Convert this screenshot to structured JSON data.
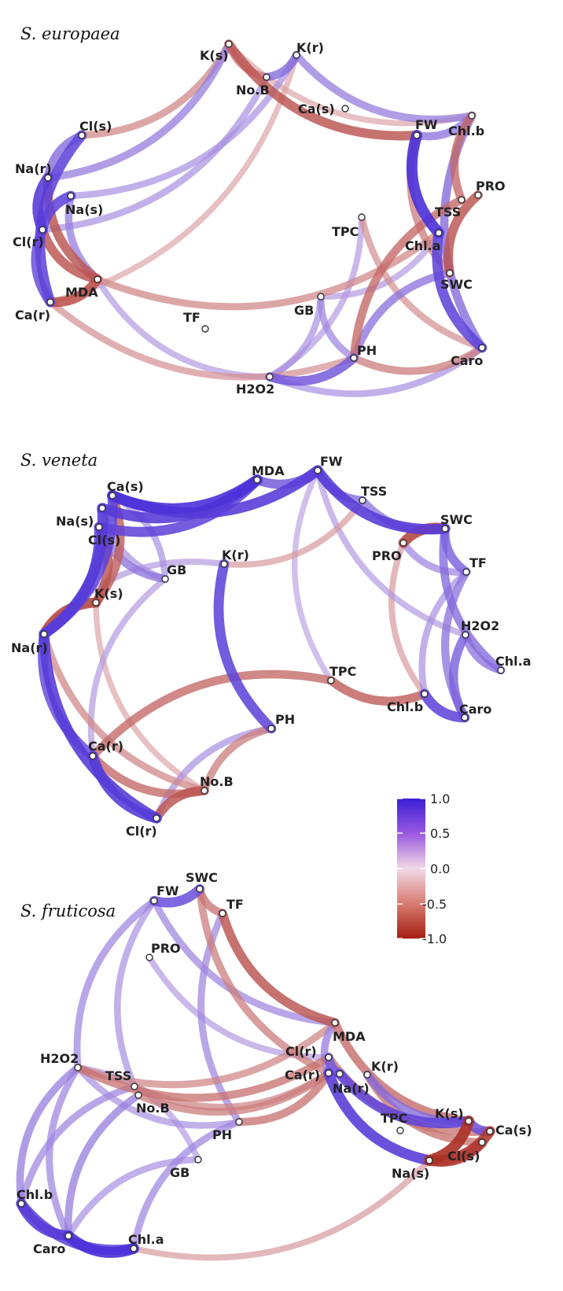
{
  "colors": {
    "positive": "#3a1fd6",
    "neutral": "#f2d9e6",
    "negative": "#a41e12"
  },
  "legend": {
    "ticks": [
      "1.0",
      "0.5",
      "0.0",
      "-0.5",
      "-1.0"
    ]
  },
  "panels": [
    {
      "id": "europaea",
      "title": "S. europaea",
      "nodes": [
        {
          "id": "K(s)"
        },
        {
          "id": "K(r)"
        },
        {
          "id": "No.B"
        },
        {
          "id": "Ca(s)"
        },
        {
          "id": "FW"
        },
        {
          "id": "Chl.b"
        },
        {
          "id": "Cl(s)"
        },
        {
          "id": "Na(r)"
        },
        {
          "id": "Na(s)"
        },
        {
          "id": "PRO"
        },
        {
          "id": "TSS"
        },
        {
          "id": "Cl(r)"
        },
        {
          "id": "TPC"
        },
        {
          "id": "Chl.a"
        },
        {
          "id": "MDA"
        },
        {
          "id": "SWC"
        },
        {
          "id": "Ca(r)"
        },
        {
          "id": "GB"
        },
        {
          "id": "TF"
        },
        {
          "id": "PH"
        },
        {
          "id": "Caro"
        },
        {
          "id": "H2O2"
        }
      ],
      "edges": [
        {
          "from": "K(s)",
          "to": "FW",
          "r": -0.7
        },
        {
          "from": "K(s)",
          "to": "No.B",
          "r": -0.5
        },
        {
          "from": "No.B",
          "to": "K(r)",
          "r": 0.6
        },
        {
          "from": "K(r)",
          "to": "Chl.b",
          "r": 0.5
        },
        {
          "from": "K(s)",
          "to": "Chl.b",
          "r": -0.3
        },
        {
          "from": "FW",
          "to": "Chl.b",
          "r": 0.55
        },
        {
          "from": "Chl.b",
          "to": "Caro",
          "r": 0.6
        },
        {
          "from": "FW",
          "to": "Chl.a",
          "r": 0.9
        },
        {
          "from": "Chl.a",
          "to": "Caro",
          "r": 0.8
        },
        {
          "from": "PRO",
          "to": "SWC",
          "r": -0.7
        },
        {
          "from": "TSS",
          "to": "PH",
          "r": -0.6
        },
        {
          "from": "FW",
          "to": "SWC",
          "r": -0.5
        },
        {
          "from": "Chl.b",
          "to": "TSS",
          "r": -0.6
        },
        {
          "from": "SWC",
          "to": "PH",
          "r": 0.55
        },
        {
          "from": "TPC",
          "to": "Caro",
          "r": -0.4
        },
        {
          "from": "GB",
          "to": "Chl.a",
          "r": 0.35
        },
        {
          "from": "GB",
          "to": "PH",
          "r": 0.45
        },
        {
          "from": "H2O2",
          "to": "PH",
          "r": 0.7
        },
        {
          "from": "H2O2",
          "to": "TPC",
          "r": 0.35
        },
        {
          "from": "H2O2",
          "to": "Caro",
          "r": 0.4
        },
        {
          "from": "H2O2",
          "to": "GB",
          "r": 0.4
        },
        {
          "from": "PH",
          "to": "Caro",
          "r": -0.5
        },
        {
          "from": "Ca(r)",
          "to": "PH",
          "r": -0.4
        },
        {
          "from": "MDA",
          "to": "H2O2",
          "r": 0.35
        },
        {
          "from": "Cl(s)",
          "to": "Na(r)",
          "r": 0.6
        },
        {
          "from": "Na(r)",
          "to": "Cl(r)",
          "r": 0.85
        },
        {
          "from": "Na(s)",
          "to": "Cl(r)",
          "r": 0.8
        },
        {
          "from": "Cl(r)",
          "to": "Ca(r)",
          "r": 0.75
        },
        {
          "from": "Na(r)",
          "to": "MDA",
          "r": -0.7
        },
        {
          "from": "Cl(s)",
          "to": "Ca(r)",
          "r": 0.8
        },
        {
          "from": "Cl(r)",
          "to": "MDA",
          "r": -0.7
        },
        {
          "from": "Ca(r)",
          "to": "MDA",
          "r": -0.75
        },
        {
          "from": "Na(s)",
          "to": "MDA",
          "r": 0.5
        },
        {
          "from": "Cl(s)",
          "to": "K(s)",
          "r": -0.45
        },
        {
          "from": "Na(r)",
          "to": "K(s)",
          "r": 0.5
        },
        {
          "from": "Na(s)",
          "to": "K(r)",
          "r": 0.4
        },
        {
          "from": "Cl(r)",
          "to": "No.B",
          "r": 0.4
        },
        {
          "from": "Ca(r)",
          "to": "K(r)",
          "r": -0.3
        },
        {
          "from": "MDA",
          "to": "Chl.a",
          "r": -0.45
        }
      ]
    },
    {
      "id": "veneta",
      "title": "S. veneta",
      "nodes": [
        {
          "id": "MDA"
        },
        {
          "id": "FW"
        },
        {
          "id": "Ca(s)"
        },
        {
          "id": "TSS"
        },
        {
          "id": "Na(s)"
        },
        {
          "id": "SWC"
        },
        {
          "id": "Cl(s)"
        },
        {
          "id": "K(r)"
        },
        {
          "id": "PRO"
        },
        {
          "id": "GB"
        },
        {
          "id": "TF"
        },
        {
          "id": "K(s)"
        },
        {
          "id": "H2O2"
        },
        {
          "id": "Na(r)"
        },
        {
          "id": "Chl.a"
        },
        {
          "id": "TPC"
        },
        {
          "id": "Chl.b"
        },
        {
          "id": "Caro"
        },
        {
          "id": "PH"
        },
        {
          "id": "Ca(r)"
        },
        {
          "id": "No.B"
        },
        {
          "id": "Cl(r)"
        }
      ],
      "edges": [
        {
          "from": "Ca(s)",
          "to": "MDA",
          "r": 0.9
        },
        {
          "from": "Na(s)",
          "to": "MDA",
          "r": 0.85
        },
        {
          "from": "Cl(s)",
          "to": "MDA",
          "r": 0.8
        },
        {
          "from": "Ca(s)",
          "to": "FW",
          "r": 0.85
        },
        {
          "from": "MDA",
          "to": "FW",
          "r": 0.7
        },
        {
          "from": "FW",
          "to": "SWC",
          "r": 0.85
        },
        {
          "from": "FW",
          "to": "TSS",
          "r": 0.6
        },
        {
          "from": "TSS",
          "to": "SWC",
          "r": 0.55
        },
        {
          "from": "SWC",
          "to": "PRO",
          "r": -0.8
        },
        {
          "from": "PRO",
          "to": "TF",
          "r": 0.45
        },
        {
          "from": "SWC",
          "to": "TF",
          "r": 0.65
        },
        {
          "from": "SWC",
          "to": "Chl.a",
          "r": 0.6
        },
        {
          "from": "TF",
          "to": "Caro",
          "r": 0.55
        },
        {
          "from": "H2O2",
          "to": "Chl.a",
          "r": 0.55
        },
        {
          "from": "H2O2",
          "to": "Caro",
          "r": 0.65
        },
        {
          "from": "Chl.b",
          "to": "Caro",
          "r": 0.8
        },
        {
          "from": "TF",
          "to": "Chl.b",
          "r": 0.4
        },
        {
          "from": "PRO",
          "to": "Chl.b",
          "r": -0.35
        },
        {
          "from": "TPC",
          "to": "Chl.b",
          "r": -0.65
        },
        {
          "from": "TPC",
          "to": "Ca(r)",
          "r": -0.6
        },
        {
          "from": "FW",
          "to": "H2O2",
          "r": 0.35
        },
        {
          "from": "K(r)",
          "to": "PH",
          "r": 0.8
        },
        {
          "from": "PH",
          "to": "No.B",
          "r": -0.5
        },
        {
          "from": "PH",
          "to": "Cl(r)",
          "r": 0.4
        },
        {
          "from": "Ca(r)",
          "to": "Cl(r)",
          "r": 0.85
        },
        {
          "from": "Ca(r)",
          "to": "No.B",
          "r": -0.6
        },
        {
          "from": "No.B",
          "to": "Cl(r)",
          "r": -0.7
        },
        {
          "from": "Na(r)",
          "to": "Ca(r)",
          "r": 0.75
        },
        {
          "from": "Na(r)",
          "to": "Cl(r)",
          "r": 0.85
        },
        {
          "from": "Na(r)",
          "to": "No.B",
          "r": -0.45
        },
        {
          "from": "K(s)",
          "to": "Na(r)",
          "r": -0.8
        },
        {
          "from": "K(s)",
          "to": "Cl(s)",
          "r": -0.7
        },
        {
          "from": "K(s)",
          "to": "Ca(s)",
          "r": -0.65
        },
        {
          "from": "Na(r)",
          "to": "Na(s)",
          "r": 0.85
        },
        {
          "from": "Na(r)",
          "to": "Ca(s)",
          "r": 0.8
        },
        {
          "from": "Na(r)",
          "to": "Cl(s)",
          "r": 0.8
        },
        {
          "from": "Na(s)",
          "to": "GB",
          "r": 0.4
        },
        {
          "from": "Cl(s)",
          "to": "GB",
          "r": 0.55
        },
        {
          "from": "GB",
          "to": "Ca(r)",
          "r": 0.35
        },
        {
          "from": "K(r)",
          "to": "Na(r)",
          "r": 0.35
        },
        {
          "from": "K(s)",
          "to": "No.B",
          "r": -0.3
        },
        {
          "from": "K(r)",
          "to": "TSS",
          "r": -0.35
        },
        {
          "from": "FW",
          "to": "TPC",
          "r": 0.3
        },
        {
          "from": "GB",
          "to": "Ca(s)",
          "r": 0.4
        }
      ]
    },
    {
      "id": "fruticosa",
      "title": "S. fruticosa",
      "nodes": [
        {
          "id": "SWC"
        },
        {
          "id": "FW"
        },
        {
          "id": "TF"
        },
        {
          "id": "PRO"
        },
        {
          "id": "MDA"
        },
        {
          "id": "H2O2"
        },
        {
          "id": "Cl(r)"
        },
        {
          "id": "Ca(r)"
        },
        {
          "id": "Na(r)"
        },
        {
          "id": "K(r)"
        },
        {
          "id": "TSS"
        },
        {
          "id": "No.B"
        },
        {
          "id": "TPC"
        },
        {
          "id": "K(s)"
        },
        {
          "id": "Ca(s)"
        },
        {
          "id": "PH"
        },
        {
          "id": "Cl(s)"
        },
        {
          "id": "GB"
        },
        {
          "id": "Na(s)"
        },
        {
          "id": "Chl.b"
        },
        {
          "id": "Caro"
        },
        {
          "id": "Chl.a"
        }
      ],
      "edges": [
        {
          "from": "FW",
          "to": "SWC",
          "r": 0.75
        },
        {
          "from": "SWC",
          "to": "TF",
          "r": -0.55
        },
        {
          "from": "TF",
          "to": "MDA",
          "r": -0.7
        },
        {
          "from": "FW",
          "to": "MDA",
          "r": 0.45
        },
        {
          "from": "SWC",
          "to": "Ca(r)",
          "r": -0.5
        },
        {
          "from": "TF",
          "to": "PH",
          "r": 0.45
        },
        {
          "from": "FW",
          "to": "H2O2",
          "r": 0.45
        },
        {
          "from": "FW",
          "to": "TSS",
          "r": 0.4
        },
        {
          "from": "PRO",
          "to": "Cl(r)",
          "r": 0.35
        },
        {
          "from": "H2O2",
          "to": "Cl(r)",
          "r": -0.55
        },
        {
          "from": "H2O2",
          "to": "MDA",
          "r": -0.45
        },
        {
          "from": "H2O2",
          "to": "Chl.b",
          "r": 0.5
        },
        {
          "from": "H2O2",
          "to": "Caro",
          "r": 0.45
        },
        {
          "from": "H2O2",
          "to": "PH",
          "r": 0.4
        },
        {
          "from": "TSS",
          "to": "Chl.b",
          "r": 0.45
        },
        {
          "from": "No.B",
          "to": "Caro",
          "r": 0.5
        },
        {
          "from": "No.B",
          "to": "Ca(r)",
          "r": -0.5
        },
        {
          "from": "PH",
          "to": "Chl.a",
          "r": 0.45
        },
        {
          "from": "GB",
          "to": "Caro",
          "r": 0.4
        },
        {
          "from": "Chl.b",
          "to": "Caro",
          "r": 0.85
        },
        {
          "from": "Caro",
          "to": "Chl.a",
          "r": 0.9
        },
        {
          "from": "Chl.b",
          "to": "Chl.a",
          "r": 0.8
        },
        {
          "from": "Chl.a",
          "to": "Na(s)",
          "r": -0.35
        },
        {
          "from": "MDA",
          "to": "K(s)",
          "r": -0.6
        },
        {
          "from": "Cl(r)",
          "to": "Ca(s)",
          "r": -0.55
        },
        {
          "from": "Ca(r)",
          "to": "Na(s)",
          "r": 0.85
        },
        {
          "from": "Na(r)",
          "to": "K(s)",
          "r": 0.8
        },
        {
          "from": "K(r)",
          "to": "Cl(s)",
          "r": -0.55
        },
        {
          "from": "Na(s)",
          "to": "K(s)",
          "r": -0.9
        },
        {
          "from": "Na(s)",
          "to": "Cl(s)",
          "r": -0.85
        },
        {
          "from": "Na(s)",
          "to": "Ca(s)",
          "r": -0.85
        },
        {
          "from": "K(s)",
          "to": "Ca(s)",
          "r": 0.75
        },
        {
          "from": "K(r)",
          "to": "K(s)",
          "r": 0.6
        },
        {
          "from": "MDA",
          "to": "Ca(r)",
          "r": 0.5
        },
        {
          "from": "Cl(r)",
          "to": "Na(r)",
          "r": 0.7
        },
        {
          "from": "PH",
          "to": "Ca(r)",
          "r": -0.55
        },
        {
          "from": "TSS",
          "to": "Ca(r)",
          "r": -0.45
        },
        {
          "from": "GB",
          "to": "H2O2",
          "r": 0.35
        }
      ]
    }
  ]
}
